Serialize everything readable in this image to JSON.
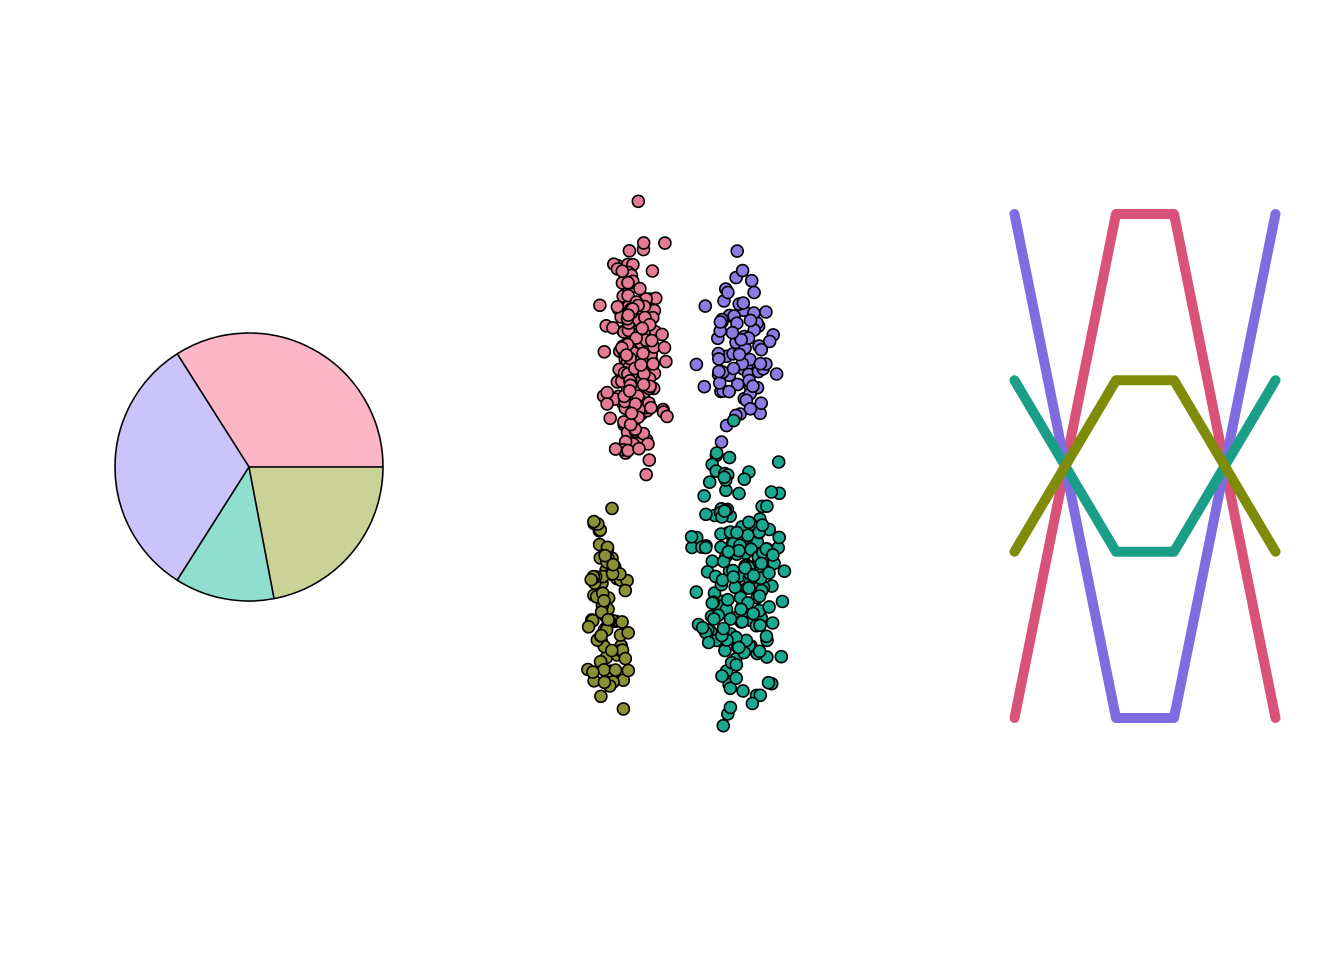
{
  "chart_data": [
    {
      "type": "pie",
      "slices": [
        {
          "value": 34,
          "color": "#FDB6C8"
        },
        {
          "value": 32,
          "color": "#CAC4FB"
        },
        {
          "value": 12,
          "color": "#90DED0"
        },
        {
          "value": 22,
          "color": "#CAD298"
        }
      ]
    },
    {
      "type": "scatter",
      "xlim": [
        0,
        10
      ],
      "ylim": [
        0,
        10
      ],
      "series": [
        {
          "color": "#E27B93",
          "center": [
            3.2,
            6.5
          ],
          "spread": [
            0.62,
            1.25
          ],
          "count": 190,
          "seed": 11
        },
        {
          "color": "#8C7BE2",
          "center": [
            6.3,
            6.5
          ],
          "spread": [
            0.75,
            0.75
          ],
          "count": 85,
          "seed": 23
        },
        {
          "color": "#1AA990",
          "center": [
            6.3,
            3.5
          ],
          "spread": [
            0.95,
            1.4
          ],
          "count": 190,
          "seed": 37
        },
        {
          "color": "#8A9034",
          "center": [
            2.3,
            3.0
          ],
          "spread": [
            0.55,
            1.05
          ],
          "count": 85,
          "seed": 51
        }
      ]
    },
    {
      "type": "line",
      "xlim": [
        0,
        10
      ],
      "ylim": [
        0,
        10
      ],
      "series": [
        {
          "color": "#D9527A",
          "x": [
            0.5,
            4.0,
            6.0,
            9.5
          ],
          "y": [
            0,
            10,
            10,
            0
          ]
        },
        {
          "color": "#806CE0",
          "x": [
            0.5,
            4.0,
            6.0,
            9.5
          ],
          "y": [
            10,
            0,
            0,
            10
          ]
        },
        {
          "color": "#1A9E88",
          "x": [
            0.5,
            4.0,
            6.0,
            9.5
          ],
          "y": [
            6.7,
            3.3,
            3.3,
            6.7
          ]
        },
        {
          "color": "#7F8C0A",
          "x": [
            0.5,
            4.0,
            6.0,
            9.5
          ],
          "y": [
            3.3,
            6.7,
            6.7,
            3.3
          ]
        }
      ]
    }
  ]
}
